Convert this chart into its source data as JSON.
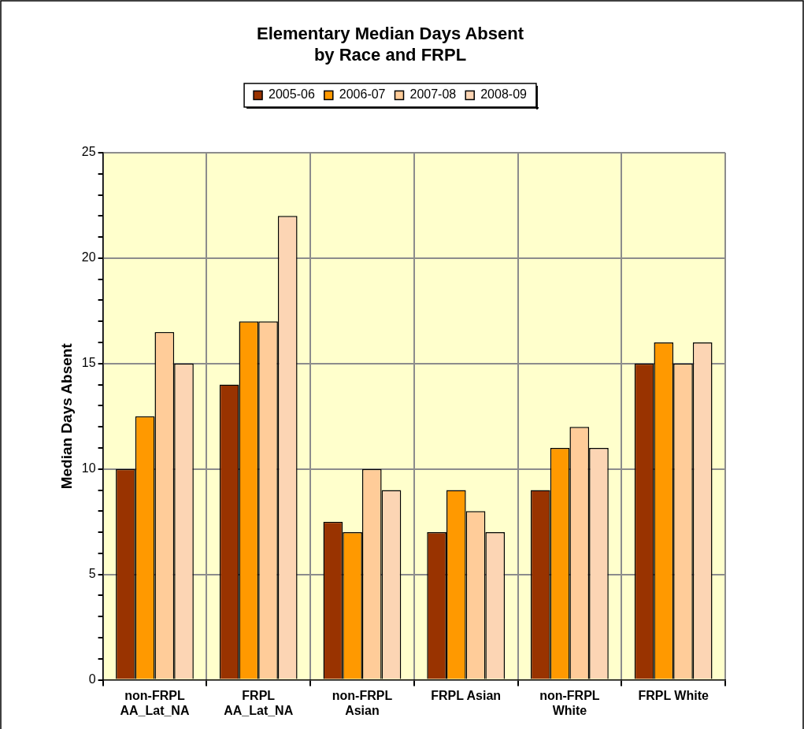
{
  "chart_data": {
    "type": "bar",
    "title": "Elementary Median Days Absent\nby Race and FRPL",
    "ylabel": "Median Days Absent",
    "categories": [
      "non-FRPL\nAA_Lat_NA",
      "FRPL\nAA_Lat_NA",
      "non-FRPL\nAsian",
      "FRPL Asian",
      "non-FRPL\nWhite",
      "FRPL White"
    ],
    "series": [
      {
        "name": "2005-06",
        "color": "#993300",
        "values": [
          10,
          14,
          7.5,
          7,
          9,
          15
        ]
      },
      {
        "name": "2006-07",
        "color": "#ff9900",
        "values": [
          12.5,
          17,
          7,
          9,
          11,
          16
        ]
      },
      {
        "name": "2007-08",
        "color": "#ffcc99",
        "values": [
          16.5,
          17,
          10,
          8,
          12,
          15
        ]
      },
      {
        "name": "2008-09",
        "color": "#fcd5b4",
        "values": [
          15,
          22,
          9,
          7,
          11,
          16
        ]
      }
    ],
    "ylim": [
      0,
      25
    ],
    "yticks": [
      0,
      {
        "value": 1,
        "label": null
      },
      {
        "value": 2,
        "label": null
      },
      {
        "value": 3,
        "label": null
      },
      {
        "value": 4,
        "label": null
      },
      5,
      {
        "value": 6,
        "label": null
      },
      {
        "value": 7,
        "label": null
      },
      {
        "value": 8,
        "label": null
      },
      {
        "value": 9,
        "label": null
      },
      10,
      {
        "value": 11,
        "label": null
      },
      {
        "value": 12,
        "label": null
      },
      {
        "value": 13,
        "label": null
      },
      {
        "value": 14,
        "label": null
      },
      15,
      {
        "value": 16,
        "label": null
      },
      {
        "value": 17,
        "label": null
      },
      {
        "value": 18,
        "label": null
      },
      {
        "value": 19,
        "label": null
      },
      20,
      {
        "value": 21,
        "label": null
      },
      {
        "value": 22,
        "label": null
      },
      {
        "value": 23,
        "label": null
      },
      {
        "value": 24,
        "label": null
      },
      25
    ],
    "grid": true,
    "legend": "top"
  }
}
